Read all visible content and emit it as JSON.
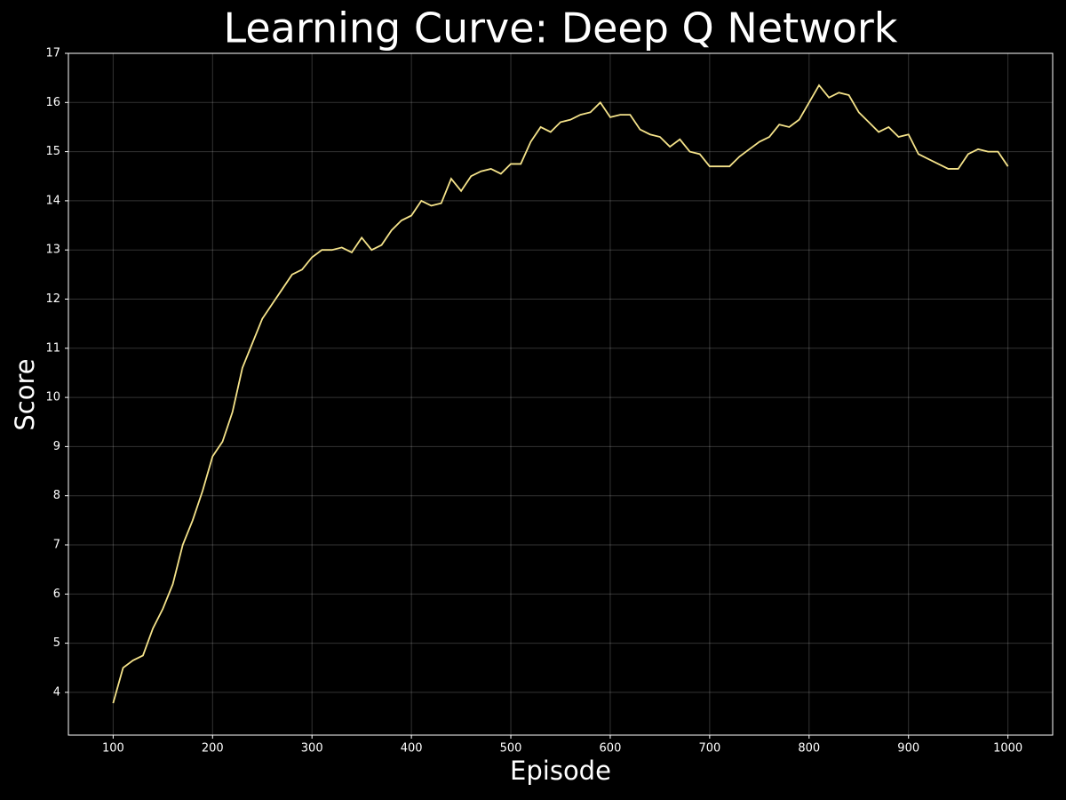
{
  "chart_data": {
    "type": "line",
    "title": "Learning Curve: Deep Q Network",
    "xlabel": "Episode",
    "ylabel": "Score",
    "x": [
      100,
      110,
      120,
      130,
      140,
      150,
      160,
      170,
      180,
      190,
      200,
      210,
      220,
      230,
      240,
      250,
      260,
      270,
      280,
      290,
      300,
      310,
      320,
      330,
      340,
      350,
      360,
      370,
      380,
      390,
      400,
      410,
      420,
      430,
      440,
      450,
      460,
      470,
      480,
      490,
      500,
      510,
      520,
      530,
      540,
      550,
      560,
      570,
      580,
      590,
      600,
      610,
      620,
      630,
      640,
      650,
      660,
      670,
      680,
      690,
      700,
      710,
      720,
      730,
      740,
      750,
      760,
      770,
      780,
      790,
      800,
      810,
      820,
      830,
      840,
      850,
      860,
      870,
      880,
      890,
      900,
      910,
      920,
      930,
      940,
      950,
      960,
      970,
      980,
      990,
      1000
    ],
    "series": [
      {
        "name": "Score",
        "color": "#f5e38a",
        "values": [
          3.78,
          4.5,
          4.65,
          4.75,
          5.3,
          5.7,
          6.2,
          7.0,
          7.5,
          8.1,
          8.8,
          9.1,
          9.7,
          10.6,
          11.1,
          11.6,
          11.9,
          12.2,
          12.5,
          12.6,
          12.85,
          13.0,
          13.0,
          13.05,
          12.95,
          13.25,
          13.0,
          13.1,
          13.4,
          13.6,
          13.7,
          14.0,
          13.9,
          13.95,
          14.45,
          14.2,
          14.5,
          14.6,
          14.65,
          14.55,
          14.75,
          14.75,
          15.2,
          15.5,
          15.4,
          15.6,
          15.65,
          15.75,
          15.8,
          16.0,
          15.7,
          15.75,
          15.75,
          15.45,
          15.35,
          15.3,
          15.1,
          15.25,
          15.0,
          14.95,
          14.7,
          14.7,
          14.7,
          14.9,
          15.05,
          15.2,
          15.3,
          15.55,
          15.5,
          15.65,
          16.0,
          16.35,
          16.1,
          16.2,
          16.15,
          15.8,
          15.6,
          15.4,
          15.5,
          15.3,
          15.35,
          14.95,
          14.85,
          14.75,
          14.65,
          14.65,
          14.95,
          15.05,
          15.0,
          15.0,
          14.7
        ]
      }
    ],
    "xlim": [
      55,
      1045
    ],
    "ylim": [
      3.13,
      17
    ],
    "xticks": [
      100,
      200,
      300,
      400,
      500,
      600,
      700,
      800,
      900,
      1000
    ],
    "yticks": [
      4,
      5,
      6,
      7,
      8,
      9,
      10,
      11,
      12,
      13,
      14,
      15,
      16,
      17
    ],
    "grid": true
  }
}
